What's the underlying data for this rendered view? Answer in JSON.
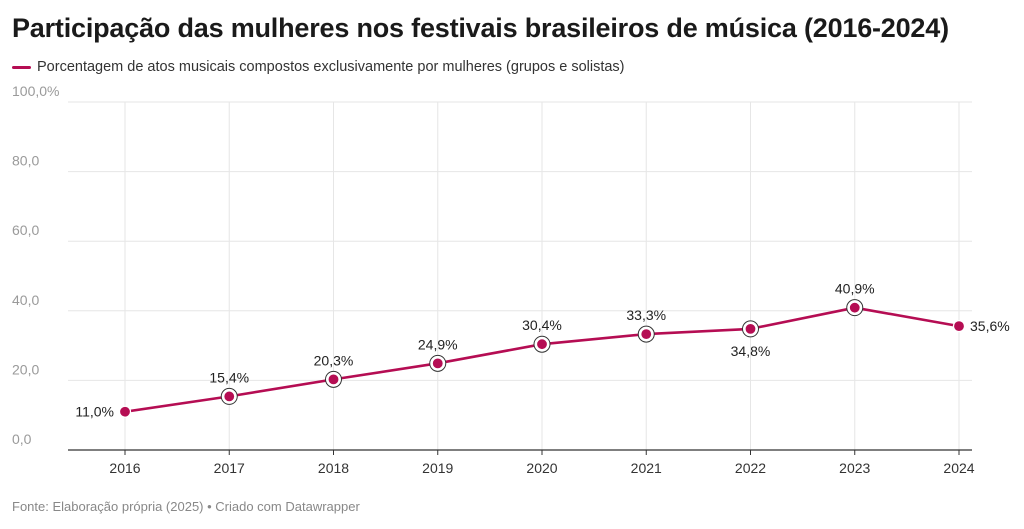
{
  "chart_data": {
    "type": "line",
    "title": "Participação das mulheres nos festivais brasileiros de música (2016-2024)",
    "x": [
      "2016",
      "2017",
      "2018",
      "2019",
      "2020",
      "2021",
      "2022",
      "2023",
      "2024"
    ],
    "series": [
      {
        "name": "Porcentagem de atos musicais compostos exclusivamente por mulheres (grupos e solistas)",
        "values": [
          11.0,
          15.4,
          20.3,
          24.9,
          30.4,
          33.3,
          34.8,
          40.9,
          35.6
        ],
        "labels": [
          "11,0%",
          "15,4%",
          "20,3%",
          "24,9%",
          "30,4%",
          "33,3%",
          "34,8%",
          "40,9%",
          "35,6%"
        ],
        "label_positions": [
          "left",
          "above",
          "above",
          "above",
          "above",
          "above",
          "below",
          "above",
          "right"
        ],
        "color": "#b50d53"
      }
    ],
    "ylim": [
      0,
      100
    ],
    "yticks": [
      0,
      20,
      40,
      60,
      80,
      100
    ],
    "ytick_labels": [
      "0,0",
      "20,0",
      "40,0",
      "60,0",
      "80,0",
      "100,0%"
    ],
    "xlabel": "",
    "ylabel": "",
    "grid": true,
    "legend_position": "top-left"
  },
  "source": "Fonte: Elaboração própria (2025) • Criado com Datawrapper"
}
